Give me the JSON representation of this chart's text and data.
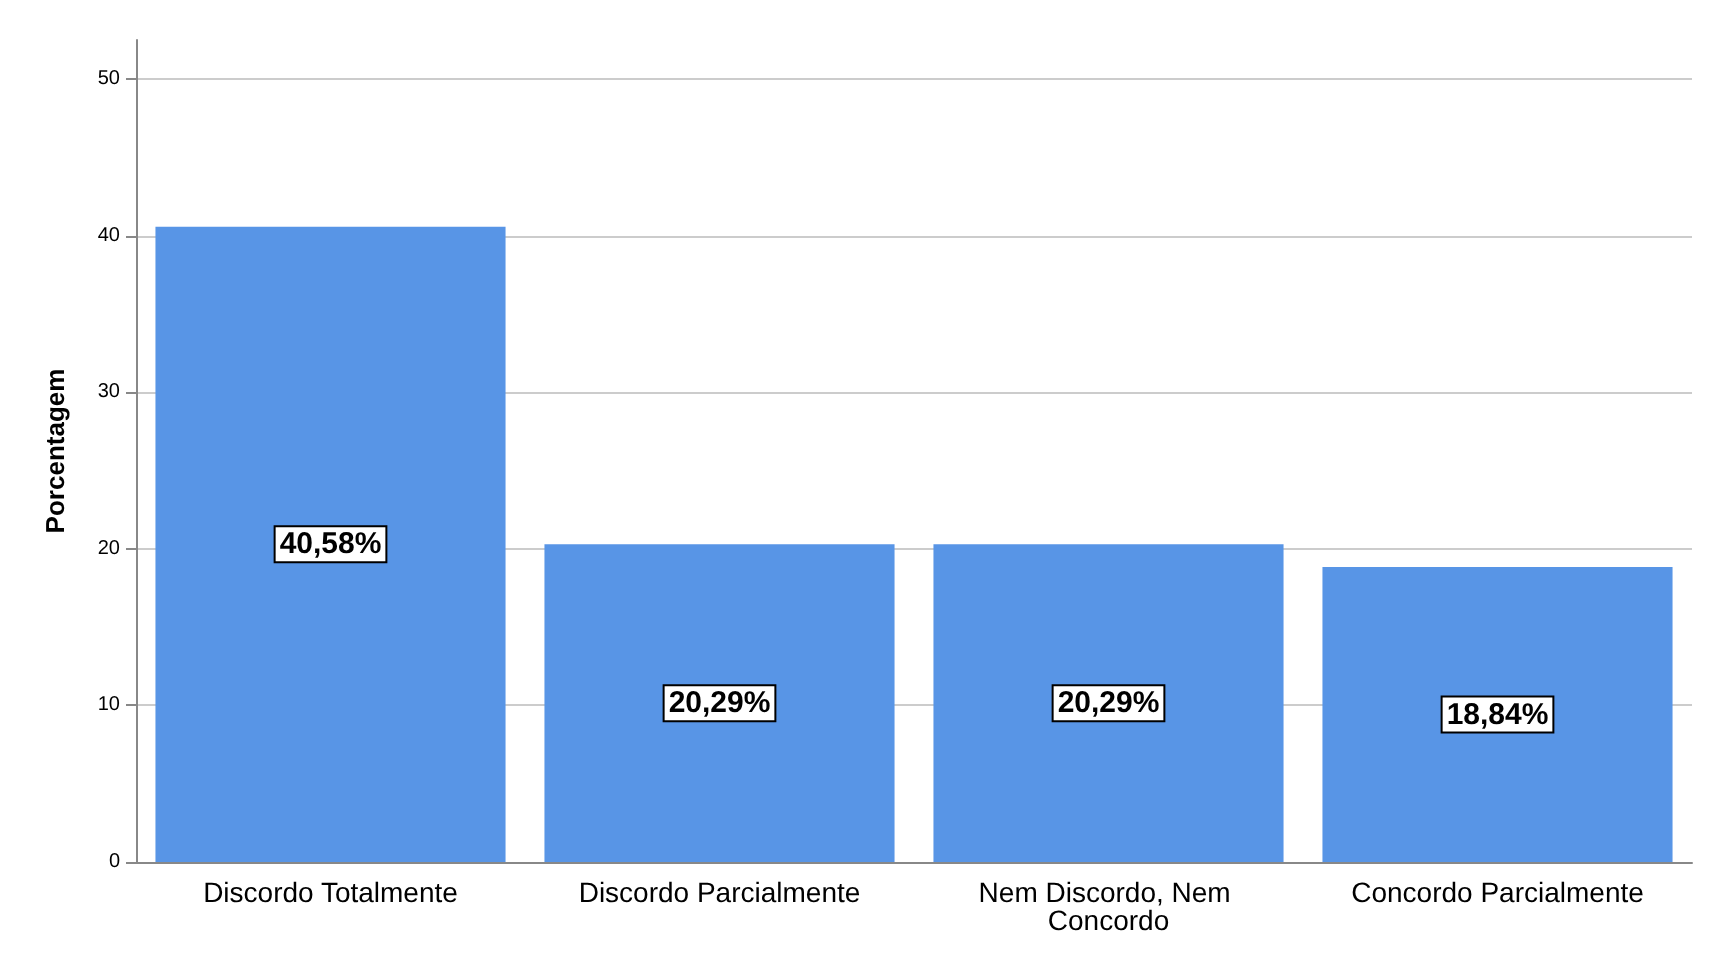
{
  "chart_data": {
    "type": "bar",
    "ylabel": "Porcentagem",
    "categories": [
      "Discordo Totalmente",
      "Discordo Parcialmente",
      "Nem Discordo, Nem Concordo",
      "Concordo Parcialmente"
    ],
    "values": [
      40.58,
      20.29,
      20.29,
      18.84
    ],
    "value_labels": [
      "40,58%",
      "20,29%",
      "20,29%",
      "18,84%"
    ],
    "color": "#5895e6",
    "ylim": [
      0,
      52.5
    ],
    "yticks": [
      0,
      10,
      20,
      30,
      40,
      50
    ],
    "grid": "y"
  }
}
